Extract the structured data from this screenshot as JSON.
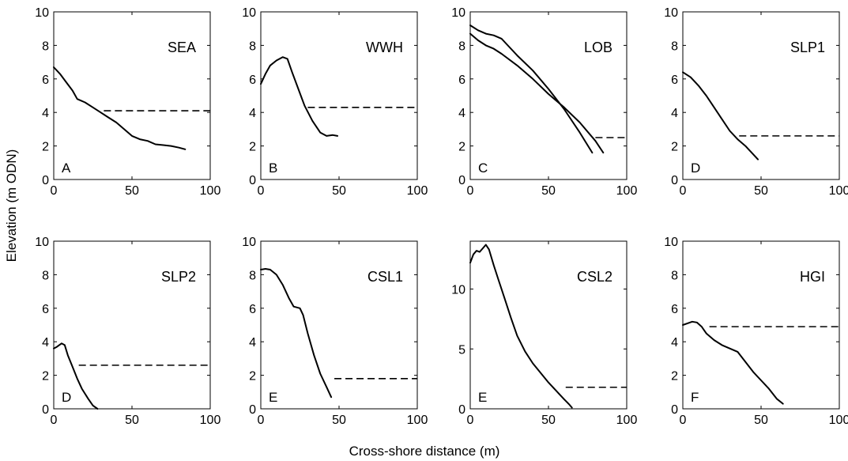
{
  "figure": {
    "ylabel": "Elevation (m ODN)",
    "xlabel": "Cross-shore distance (m)"
  },
  "chart_data": [
    {
      "type": "line",
      "site": "SEA",
      "panel": "A",
      "xlim": [
        0,
        100
      ],
      "ylim": [
        0,
        10
      ],
      "xticks": [
        "0",
        "50",
        "100"
      ],
      "yticks": [
        "0",
        "2",
        "4",
        "6",
        "8",
        "10"
      ],
      "profiles": [
        {
          "x": [
            0,
            4,
            8,
            12,
            15,
            20,
            25,
            30,
            35,
            40,
            45,
            50,
            55,
            60,
            65,
            70,
            75,
            80,
            84
          ],
          "y": [
            6.7,
            6.3,
            5.8,
            5.3,
            4.8,
            4.6,
            4.3,
            4.0,
            3.7,
            3.4,
            3.0,
            2.6,
            2.4,
            2.3,
            2.1,
            2.05,
            2.0,
            1.9,
            1.8
          ]
        }
      ],
      "water_level": {
        "x": [
          32,
          100
        ],
        "y": 4.1
      }
    },
    {
      "type": "line",
      "site": "WWH",
      "panel": "B",
      "xlim": [
        0,
        100
      ],
      "ylim": [
        0,
        10
      ],
      "xticks": [
        "0",
        "50",
        "100"
      ],
      "yticks": [
        "0",
        "2",
        "4",
        "6",
        "8",
        "10"
      ],
      "profiles": [
        {
          "x": [
            0,
            3,
            6,
            10,
            14,
            17,
            20,
            24,
            28,
            33,
            38,
            42,
            46,
            49
          ],
          "y": [
            5.7,
            6.3,
            6.8,
            7.1,
            7.3,
            7.2,
            6.4,
            5.4,
            4.4,
            3.5,
            2.8,
            2.6,
            2.65,
            2.6
          ]
        }
      ],
      "water_level": {
        "x": [
          30,
          100
        ],
        "y": 4.3
      }
    },
    {
      "type": "line",
      "site": "LOB",
      "panel": "C",
      "xlim": [
        0,
        100
      ],
      "ylim": [
        0,
        10
      ],
      "xticks": [
        "0",
        "50",
        "100"
      ],
      "yticks": [
        "0",
        "2",
        "4",
        "6",
        "8",
        "10"
      ],
      "profiles": [
        {
          "x": [
            0,
            5,
            10,
            15,
            20,
            25,
            30,
            40,
            50,
            60,
            70,
            78
          ],
          "y": [
            9.2,
            8.9,
            8.7,
            8.6,
            8.4,
            7.9,
            7.4,
            6.5,
            5.4,
            4.2,
            2.8,
            1.6
          ]
        },
        {
          "x": [
            0,
            5,
            10,
            15,
            20,
            30,
            40,
            50,
            60,
            70,
            80,
            85
          ],
          "y": [
            8.7,
            8.3,
            8.0,
            7.8,
            7.5,
            6.8,
            6.0,
            5.1,
            4.3,
            3.4,
            2.3,
            1.6
          ]
        }
      ],
      "water_level": {
        "x": [
          80,
          100
        ],
        "y": 2.5
      }
    },
    {
      "type": "line",
      "site": "SLP1",
      "panel": "D",
      "xlim": [
        0,
        100
      ],
      "ylim": [
        0,
        10
      ],
      "xticks": [
        "0",
        "50",
        "100"
      ],
      "yticks": [
        "0",
        "2",
        "4",
        "6",
        "8",
        "10"
      ],
      "profiles": [
        {
          "x": [
            0,
            5,
            10,
            15,
            20,
            25,
            30,
            35,
            40,
            45,
            48
          ],
          "y": [
            6.4,
            6.1,
            5.6,
            5.0,
            4.3,
            3.6,
            2.9,
            2.4,
            2.0,
            1.5,
            1.2
          ]
        }
      ],
      "water_level": {
        "x": [
          36,
          100
        ],
        "y": 2.6
      }
    },
    {
      "type": "line",
      "site": "SLP2",
      "panel": "D",
      "xlim": [
        0,
        100
      ],
      "ylim": [
        0,
        10
      ],
      "xticks": [
        "0",
        "50",
        "100"
      ],
      "yticks": [
        "0",
        "2",
        "4",
        "6",
        "8",
        "10"
      ],
      "profiles": [
        {
          "x": [
            0,
            2,
            5,
            7,
            9,
            12,
            15,
            18,
            22,
            25,
            28
          ],
          "y": [
            3.6,
            3.7,
            3.9,
            3.8,
            3.2,
            2.5,
            1.8,
            1.2,
            0.6,
            0.2,
            0.0
          ]
        }
      ],
      "water_level": {
        "x": [
          16,
          100
        ],
        "y": 2.6
      }
    },
    {
      "type": "line",
      "site": "CSL1",
      "panel": "E",
      "xlim": [
        0,
        100
      ],
      "ylim": [
        0,
        10
      ],
      "xticks": [
        "0",
        "50",
        "100"
      ],
      "yticks": [
        "0",
        "2",
        "4",
        "6",
        "8",
        "10"
      ],
      "profiles": [
        {
          "x": [
            0,
            3,
            6,
            10,
            14,
            18,
            21,
            25,
            27,
            30,
            34,
            38,
            42,
            45
          ],
          "y": [
            8.3,
            8.35,
            8.3,
            8.0,
            7.4,
            6.6,
            6.1,
            6.0,
            5.6,
            4.5,
            3.2,
            2.1,
            1.3,
            0.7
          ]
        }
      ],
      "water_level": {
        "x": [
          47,
          100
        ],
        "y": 1.8
      }
    },
    {
      "type": "line",
      "site": "CSL2",
      "panel": "E",
      "xlim": [
        0,
        100
      ],
      "ylim": [
        0,
        14
      ],
      "xticks": [
        "0",
        "50",
        "100"
      ],
      "yticks": [
        "0",
        "5",
        "10"
      ],
      "profiles": [
        {
          "x": [
            0,
            2,
            4,
            6,
            8,
            10,
            12,
            15,
            18,
            22,
            26,
            30,
            35,
            40,
            45,
            50,
            55,
            60,
            63,
            65
          ],
          "y": [
            12.2,
            12.9,
            13.2,
            13.1,
            13.4,
            13.7,
            13.3,
            12.0,
            10.8,
            9.2,
            7.6,
            6.1,
            4.8,
            3.8,
            3.0,
            2.2,
            1.5,
            0.8,
            0.4,
            0.1
          ]
        }
      ],
      "water_level": {
        "x": [
          61,
          100
        ],
        "y": 1.8
      }
    },
    {
      "type": "line",
      "site": "HGI",
      "panel": "F",
      "xlim": [
        0,
        100
      ],
      "ylim": [
        0,
        10
      ],
      "xticks": [
        "0",
        "50",
        "100"
      ],
      "yticks": [
        "0",
        "2",
        "4",
        "6",
        "8",
        "10"
      ],
      "profiles": [
        {
          "x": [
            0,
            3,
            6,
            9,
            12,
            15,
            20,
            25,
            30,
            35,
            40,
            45,
            50,
            55,
            60,
            64
          ],
          "y": [
            5.0,
            5.1,
            5.2,
            5.15,
            4.9,
            4.5,
            4.1,
            3.8,
            3.6,
            3.4,
            2.8,
            2.2,
            1.7,
            1.2,
            0.6,
            0.3
          ]
        }
      ],
      "water_level": {
        "x": [
          17,
          100
        ],
        "y": 4.9
      }
    }
  ]
}
